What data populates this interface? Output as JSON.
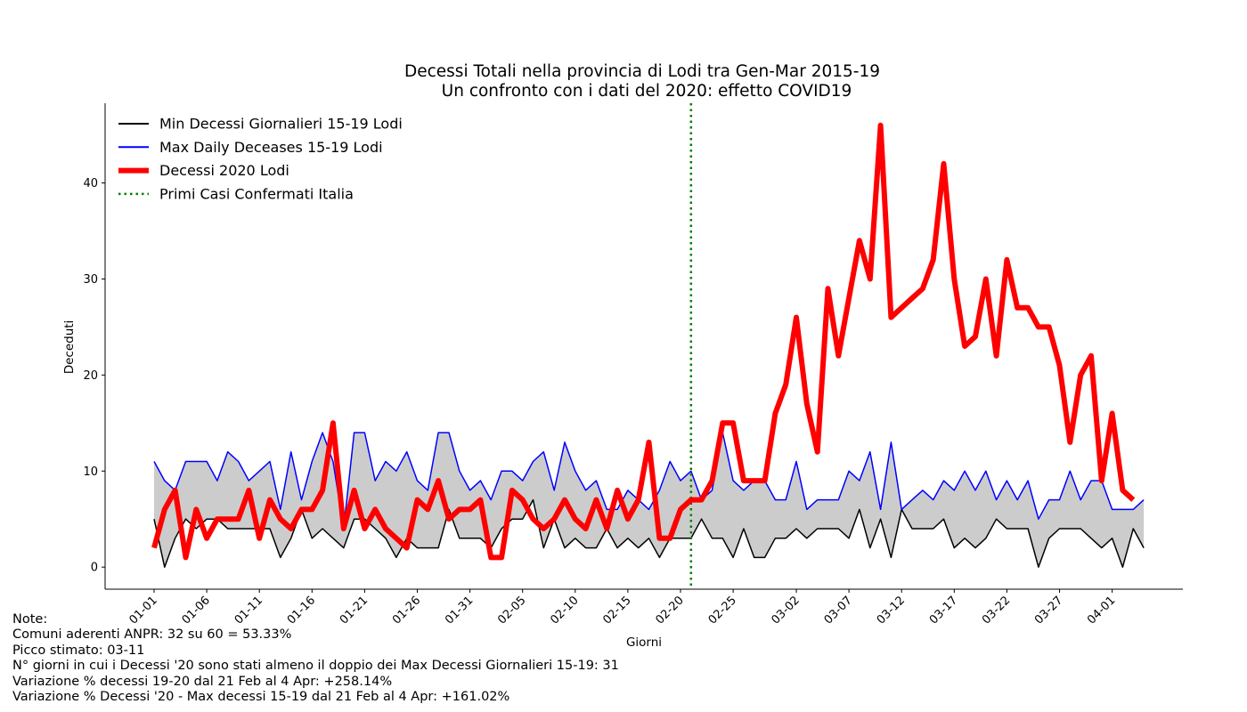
{
  "chart_data": {
    "type": "line",
    "title": "Decessi Totali nella provincia di Lodi tra Gen-Mar 2015-19",
    "subtitle": "Un confronto con i dati del 2020: effetto COVID19",
    "xlabel": "Giorni",
    "ylabel": "Deceduti",
    "ylim": [
      -2.3,
      48.3
    ],
    "yticks": [
      0,
      10,
      20,
      30,
      40
    ],
    "x_tick_labels": [
      "01-01",
      "01-06",
      "01-11",
      "01-16",
      "01-21",
      "01-26",
      "01-31",
      "02-05",
      "02-10",
      "02-15",
      "02-20",
      "02-25",
      "03-02",
      "03-07",
      "03-12",
      "03-17",
      "03-22",
      "03-27",
      "04-01"
    ],
    "x": [
      "01-01",
      "01-02",
      "01-03",
      "01-04",
      "01-05",
      "01-06",
      "01-07",
      "01-08",
      "01-09",
      "01-10",
      "01-11",
      "01-12",
      "01-13",
      "01-14",
      "01-15",
      "01-16",
      "01-17",
      "01-18",
      "01-19",
      "01-20",
      "01-21",
      "01-22",
      "01-23",
      "01-24",
      "01-25",
      "01-26",
      "01-27",
      "01-28",
      "01-29",
      "01-30",
      "01-31",
      "02-01",
      "02-02",
      "02-03",
      "02-04",
      "02-05",
      "02-06",
      "02-07",
      "02-08",
      "02-09",
      "02-10",
      "02-11",
      "02-12",
      "02-13",
      "02-14",
      "02-15",
      "02-16",
      "02-17",
      "02-18",
      "02-19",
      "02-20",
      "02-21",
      "02-22",
      "02-23",
      "02-24",
      "02-25",
      "02-26",
      "02-27",
      "02-28",
      "02-29",
      "03-01",
      "03-02",
      "03-03",
      "03-04",
      "03-05",
      "03-06",
      "03-07",
      "03-08",
      "03-09",
      "03-10",
      "03-11",
      "03-12",
      "03-13",
      "03-14",
      "03-15",
      "03-16",
      "03-17",
      "03-18",
      "03-19",
      "03-20",
      "03-21",
      "03-22",
      "03-23",
      "03-24",
      "03-25",
      "03-26",
      "03-27",
      "03-28",
      "03-29",
      "03-30",
      "03-31",
      "04-01",
      "04-02",
      "04-03",
      "04-04"
    ],
    "series": [
      {
        "name": "Min Decessi Giornalieri 15-19 Lodi",
        "color": "#000000",
        "values": [
          5,
          0,
          3,
          5,
          4,
          5,
          5,
          4,
          4,
          4,
          4,
          4,
          1,
          3,
          6,
          3,
          4,
          3,
          2,
          5,
          5,
          4,
          3,
          1,
          3,
          2,
          2,
          2,
          6,
          3,
          3,
          3,
          2,
          4,
          5,
          5,
          7,
          2,
          5,
          2,
          3,
          2,
          2,
          4,
          2,
          3,
          2,
          3,
          1,
          3,
          3,
          3,
          5,
          3,
          3,
          1,
          4,
          1,
          1,
          3,
          3,
          4,
          3,
          4,
          4,
          4,
          3,
          6,
          2,
          5,
          1,
          6,
          4,
          4,
          4,
          5,
          2,
          3,
          2,
          3,
          5,
          4,
          4,
          4,
          0,
          3,
          4,
          4,
          4,
          3,
          2,
          3,
          0,
          4,
          2
        ]
      },
      {
        "name": "Max Daily Deceases 15-19 Lodi",
        "color": "#0000ff",
        "values": [
          11,
          9,
          8,
          11,
          11,
          11,
          9,
          12,
          11,
          9,
          10,
          11,
          6,
          12,
          7,
          11,
          14,
          11,
          4,
          14,
          14,
          9,
          11,
          10,
          12,
          9,
          8,
          14,
          14,
          10,
          8,
          9,
          7,
          10,
          10,
          9,
          11,
          12,
          8,
          13,
          10,
          8,
          9,
          6,
          6,
          8,
          7,
          6,
          8,
          11,
          9,
          10,
          7,
          8,
          14,
          9,
          8,
          9,
          9,
          7,
          7,
          11,
          6,
          7,
          7,
          7,
          10,
          9,
          12,
          6,
          13,
          6,
          7,
          8,
          7,
          9,
          8,
          10,
          8,
          10,
          7,
          9,
          7,
          9,
          5,
          7,
          7,
          10,
          7,
          9,
          9,
          6,
          6,
          6,
          7
        ]
      },
      {
        "name": "Decessi 2020 Lodi",
        "color": "#ff0000",
        "values": [
          2,
          6,
          8,
          1,
          6,
          3,
          5,
          5,
          5,
          8,
          3,
          7,
          5,
          4,
          6,
          6,
          8,
          15,
          4,
          8,
          4,
          6,
          4,
          3,
          2,
          7,
          6,
          9,
          5,
          6,
          6,
          7,
          1,
          1,
          8,
          7,
          5,
          4,
          5,
          7,
          5,
          4,
          7,
          4,
          8,
          5,
          7,
          13,
          3,
          3,
          6,
          7,
          7,
          9,
          15,
          15,
          9,
          9,
          9,
          16,
          19,
          26,
          17,
          12,
          29,
          22,
          28,
          34,
          30,
          46,
          26,
          27,
          28,
          29,
          32,
          42,
          30,
          23,
          24,
          30,
          22,
          32,
          27,
          27,
          25,
          25,
          21,
          13,
          20,
          22,
          9,
          16,
          8,
          7,
          null
        ]
      },
      {
        "name": "Primi Casi Confermati Italia",
        "color": "#008000",
        "x_value": "02-21"
      }
    ]
  },
  "notes": {
    "heading": "Note:",
    "line1": "Comuni aderenti ANPR: 32 su 60 = 53.33%",
    "line2": "Picco stimato: 03-11",
    "line3": "N° giorni in cui i Decessi '20 sono stati almeno il doppio dei Max Decessi Giornalieri 15-19: 31",
    "line4": "Variazione % decessi 19-20 dal 21 Feb al 4 Apr: +258.14%",
    "line5": "Variazione % Decessi '20 - Max decessi 15-19 dal 21 Feb al 4 Apr: +161.02%"
  }
}
